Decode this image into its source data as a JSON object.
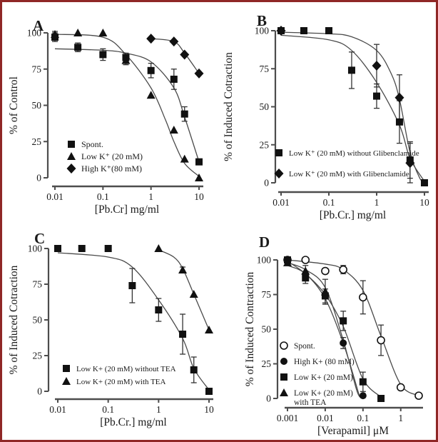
{
  "figure": {
    "border_color": "#8f2726",
    "background": "#ffffff",
    "marker_color": "#111111",
    "curve_color": "#4a4a4a",
    "axis_color": "#4d4d4d"
  },
  "chart_data": [
    {
      "type": "scatter",
      "panel_label": "A",
      "xlabel": "[Pb.Cr] mg/ml",
      "ylabel": "% of Control",
      "xscale": "log",
      "xlim": [
        0.01,
        10
      ],
      "ylim": [
        0,
        100
      ],
      "xticks": [
        {
          "v": 0.01,
          "label": "0.01"
        },
        {
          "v": 0.1,
          "label": "0.1"
        },
        {
          "v": 1,
          "label": "1"
        },
        {
          "v": 10,
          "label": "10"
        }
      ],
      "yticks": [
        0,
        25,
        50,
        75,
        100
      ],
      "grid": false,
      "series": [
        {
          "name": "Spont.",
          "marker": "square",
          "x": [
            0.01,
            0.03,
            0.1,
            0.3,
            1,
            3,
            5,
            10
          ],
          "y": [
            97,
            90,
            85,
            83,
            74,
            68,
            44,
            11
          ],
          "err": [
            3,
            3,
            4,
            3,
            5,
            7,
            5,
            0
          ],
          "curve": [
            [
              0.01,
              89
            ],
            [
              0.1,
              88
            ],
            [
              0.3,
              86
            ],
            [
              1,
              80
            ],
            [
              3,
              62
            ],
            [
              5,
              42
            ],
            [
              10,
              11
            ]
          ]
        },
        {
          "name": "Low K⁺ (20 mM)",
          "marker": "triangle",
          "x": [
            0.01,
            0.03,
            0.1,
            0.3,
            1,
            3,
            5,
            10
          ],
          "y": [
            99,
            100,
            100,
            81,
            57,
            33,
            13,
            0
          ],
          "err": [
            2,
            0,
            0,
            3,
            0,
            0,
            0,
            0
          ],
          "curve": [
            [
              0.01,
              99
            ],
            [
              0.1,
              97
            ],
            [
              0.3,
              85
            ],
            [
              1,
              62
            ],
            [
              2,
              40
            ],
            [
              3,
              25
            ],
            [
              5,
              10
            ],
            [
              10,
              1
            ]
          ]
        },
        {
          "name": "High K⁺(80 mM)",
          "marker": "diamond",
          "x": [
            1,
            3,
            5,
            10
          ],
          "y": [
            96,
            94,
            85,
            72
          ],
          "err": [
            0,
            0,
            0,
            0
          ],
          "curve": [
            [
              1,
              96
            ],
            [
              3,
              94
            ],
            [
              5,
              86
            ],
            [
              10,
              72
            ]
          ]
        }
      ],
      "legend": {
        "position": "inside-bottom-left",
        "items": [
          {
            "marker": "square",
            "label": "Spont."
          },
          {
            "marker": "triangle",
            "label": "Low K⁺ (20 mM)"
          },
          {
            "marker": "diamond",
            "label": "High K⁺(80 mM)"
          }
        ]
      }
    },
    {
      "type": "scatter",
      "panel_label": "B",
      "xlabel": "[Pb.Cr.] mg/ml",
      "ylabel": "% of Induced Cotraction",
      "xscale": "log",
      "xlim": [
        0.01,
        10
      ],
      "ylim": [
        0,
        100
      ],
      "xticks": [
        {
          "v": 0.01,
          "label": "0.01"
        },
        {
          "v": 0.1,
          "label": "0.1"
        },
        {
          "v": 1,
          "label": "1"
        },
        {
          "v": 10,
          "label": "10"
        }
      ],
      "yticks": [
        0,
        25,
        50,
        75,
        100
      ],
      "grid": false,
      "series": [
        {
          "name": "Low K⁺ (20 mM) without Glibenclamide",
          "marker": "square",
          "x": [
            0.01,
            0.03,
            0.1,
            0.3,
            1,
            3,
            5,
            10
          ],
          "y": [
            100,
            100,
            100,
            74,
            57,
            40,
            15,
            0
          ],
          "err": [
            0,
            0,
            0,
            12,
            8,
            14,
            12,
            0
          ],
          "curve": [
            [
              0.01,
              97
            ],
            [
              0.1,
              94
            ],
            [
              0.3,
              87
            ],
            [
              1,
              66
            ],
            [
              3,
              38
            ],
            [
              5,
              16
            ],
            [
              10,
              1
            ]
          ]
        },
        {
          "name": "Low K⁺ (20 mM) with Glibenclamide",
          "marker": "diamond",
          "x": [
            0.01,
            1,
            3,
            5
          ],
          "y": [
            100,
            77,
            56,
            13
          ],
          "err": [
            0,
            14,
            15,
            13
          ],
          "curve": [
            [
              0.01,
              99
            ],
            [
              0.1,
              98
            ],
            [
              0.3,
              96
            ],
            [
              1,
              87
            ],
            [
              2,
              72
            ],
            [
              3,
              55
            ],
            [
              5,
              20
            ],
            [
              8,
              3
            ],
            [
              10,
              1
            ]
          ]
        }
      ],
      "legend": {
        "position": "inside-bottom-left",
        "items": [
          {
            "marker": "square",
            "label": "Low K⁺ (20 mM) without Glibenclamide"
          },
          {
            "marker": "diamond",
            "label": "Low K⁺ (20 mM) with Glibenclamide"
          }
        ]
      }
    },
    {
      "type": "scatter",
      "panel_label": "C",
      "xlabel": "[Pb.Cr.] mg/ml",
      "ylabel": "% of Induced Cotraction",
      "xscale": "log",
      "xlim": [
        0.01,
        10
      ],
      "ylim": [
        0,
        100
      ],
      "xticks": [
        {
          "v": 0.01,
          "label": "0.01"
        },
        {
          "v": 0.1,
          "label": "0.1"
        },
        {
          "v": 1,
          "label": "1"
        },
        {
          "v": 10,
          "label": "10"
        }
      ],
      "yticks": [
        0,
        25,
        50,
        75,
        100
      ],
      "grid": false,
      "series": [
        {
          "name": "Low K+ (20 mM) without TEA",
          "marker": "square",
          "x": [
            0.01,
            0.03,
            0.1,
            0.3,
            1,
            3,
            5,
            10
          ],
          "y": [
            100,
            100,
            100,
            74,
            57,
            40,
            15,
            0
          ],
          "err": [
            0,
            0,
            0,
            12,
            8,
            14,
            9,
            0
          ],
          "curve": [
            [
              0.01,
              97
            ],
            [
              0.1,
              94
            ],
            [
              0.3,
              87
            ],
            [
              1,
              64
            ],
            [
              3,
              37
            ],
            [
              5,
              16
            ],
            [
              10,
              1
            ]
          ]
        },
        {
          "name": "Low K+ (20 mM) with TEA",
          "marker": "triangle",
          "x": [
            1,
            3,
            5,
            10
          ],
          "y": [
            100,
            85,
            68,
            43
          ],
          "err": [
            0,
            2,
            0,
            0
          ],
          "curve": [
            [
              1,
              99
            ],
            [
              2,
              94
            ],
            [
              3,
              86
            ],
            [
              5,
              68
            ],
            [
              10,
              43
            ]
          ]
        }
      ],
      "legend": {
        "position": "inside-bottom-left",
        "items": [
          {
            "marker": "square",
            "label": "Low K+ (20 mM) without TEA"
          },
          {
            "marker": "triangle",
            "label": "Low K+ (20 mM) with TEA"
          }
        ]
      }
    },
    {
      "type": "scatter",
      "panel_label": "D",
      "xlabel": "[Verapamil] μM",
      "ylabel": "% of Induced Contraction",
      "xscale": "log",
      "xlim": [
        0.001,
        3
      ],
      "ylim": [
        0,
        100
      ],
      "xticks": [
        {
          "v": 0.001,
          "label": "0.001"
        },
        {
          "v": 0.01,
          "label": "0.01"
        },
        {
          "v": 0.1,
          "label": "0.1"
        },
        {
          "v": 1,
          "label": "1"
        }
      ],
      "yticks": [
        0,
        25,
        50,
        75,
        100
      ],
      "grid": false,
      "series": [
        {
          "name": "Spont.",
          "marker": "circle-open",
          "x": [
            0.001,
            0.003,
            0.01,
            0.03,
            0.1,
            0.3,
            1,
            3
          ],
          "y": [
            100,
            100,
            92,
            93,
            73,
            42,
            8,
            2
          ],
          "err": [
            0,
            0,
            2,
            3,
            12,
            11,
            0,
            0
          ],
          "curve": [
            [
              0.001,
              100
            ],
            [
              0.01,
              97
            ],
            [
              0.03,
              93
            ],
            [
              0.1,
              78
            ],
            [
              0.3,
              45
            ],
            [
              1,
              10
            ],
            [
              3,
              2
            ]
          ]
        },
        {
          "name": "High K+ (80 mM)",
          "marker": "circle-filled",
          "x": [
            0.001,
            0.03,
            0.1
          ],
          "y": [
            100,
            40,
            2
          ],
          "err": [
            0,
            4,
            0
          ],
          "curve": [
            [
              0.001,
              98
            ],
            [
              0.003,
              93
            ],
            [
              0.01,
              80
            ],
            [
              0.03,
              42
            ],
            [
              0.07,
              5
            ],
            [
              0.1,
              1
            ]
          ]
        },
        {
          "name": "Low K+ (20 mM)",
          "marker": "square",
          "x": [
            0.001,
            0.003,
            0.01,
            0.03,
            0.1,
            0.3
          ],
          "y": [
            100,
            87,
            74,
            56,
            12,
            0
          ],
          "err": [
            0,
            4,
            5,
            7,
            7,
            0
          ],
          "curve": [
            [
              0.001,
              99
            ],
            [
              0.003,
              90
            ],
            [
              0.01,
              75
            ],
            [
              0.03,
              52
            ],
            [
              0.1,
              14
            ],
            [
              0.3,
              1
            ]
          ]
        },
        {
          "name": "Low K+ (20 mM)",
          "marker": "triangle",
          "name_line2": "with TEA",
          "x": [
            0.001,
            0.003,
            0.01
          ],
          "y": [
            98,
            92,
            77
          ],
          "err": [
            0,
            4,
            9
          ],
          "curve": [
            [
              0.001,
              96
            ],
            [
              0.003,
              90
            ],
            [
              0.01,
              72
            ],
            [
              0.03,
              40
            ],
            [
              0.08,
              2
            ]
          ]
        }
      ],
      "legend": {
        "position": "inside-left",
        "items": [
          {
            "marker": "circle-open",
            "label": "Spont."
          },
          {
            "marker": "circle-filled",
            "label": "High K+ (80 mM)"
          },
          {
            "marker": "square",
            "label": "Low K+ (20 mM)"
          },
          {
            "marker": "triangle",
            "label": "Low K+ (20 mM)",
            "label2": "with TEA"
          }
        ]
      }
    }
  ]
}
